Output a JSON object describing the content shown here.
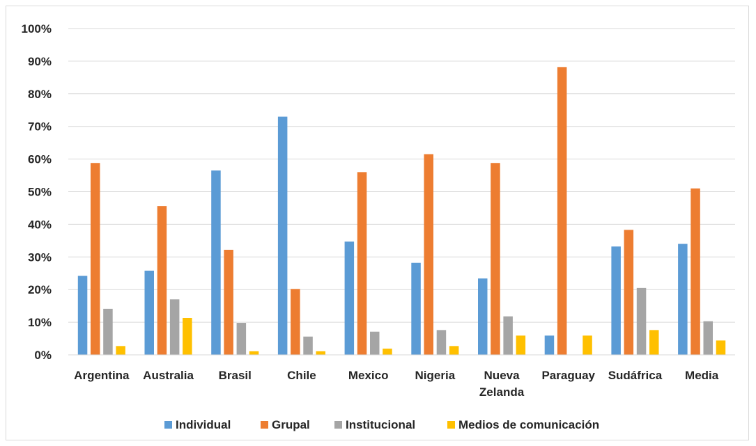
{
  "chart_data": {
    "type": "bar",
    "title": "",
    "xlabel": "",
    "ylabel": "",
    "ylim": [
      0,
      100
    ],
    "yticks": [
      "0%",
      "10%",
      "20%",
      "30%",
      "40%",
      "50%",
      "60%",
      "70%",
      "80%",
      "90%",
      "100%"
    ],
    "grid": true,
    "legend_position": "bottom",
    "categories": [
      [
        "Argentina"
      ],
      [
        "Australia"
      ],
      [
        "Brasil"
      ],
      [
        "Chile"
      ],
      [
        "Mexico"
      ],
      [
        "Nigeria"
      ],
      [
        "Nueva",
        "Zelanda"
      ],
      [
        "Paraguay"
      ],
      [
        "Sudáfrica"
      ],
      [
        "Media"
      ]
    ],
    "series": [
      {
        "name": "Individual",
        "color": "#5b9bd5",
        "values": [
          24.2,
          25.8,
          56.5,
          73.0,
          34.7,
          28.2,
          23.4,
          5.9,
          33.2,
          34.0
        ]
      },
      {
        "name": "Grupal",
        "color": "#ed7d31",
        "values": [
          58.8,
          45.6,
          32.2,
          20.2,
          56.0,
          61.5,
          58.8,
          88.2,
          38.3,
          51.0
        ]
      },
      {
        "name": "Institucional",
        "color": "#a5a5a5",
        "values": [
          14.1,
          17.0,
          9.8,
          5.6,
          7.1,
          7.6,
          11.8,
          0,
          20.5,
          10.3
        ]
      },
      {
        "name": "Medios de comunicación",
        "color": "#ffc000",
        "values": [
          2.7,
          11.3,
          1.1,
          1.1,
          1.9,
          2.7,
          5.9,
          5.9,
          7.6,
          4.4
        ]
      }
    ]
  }
}
